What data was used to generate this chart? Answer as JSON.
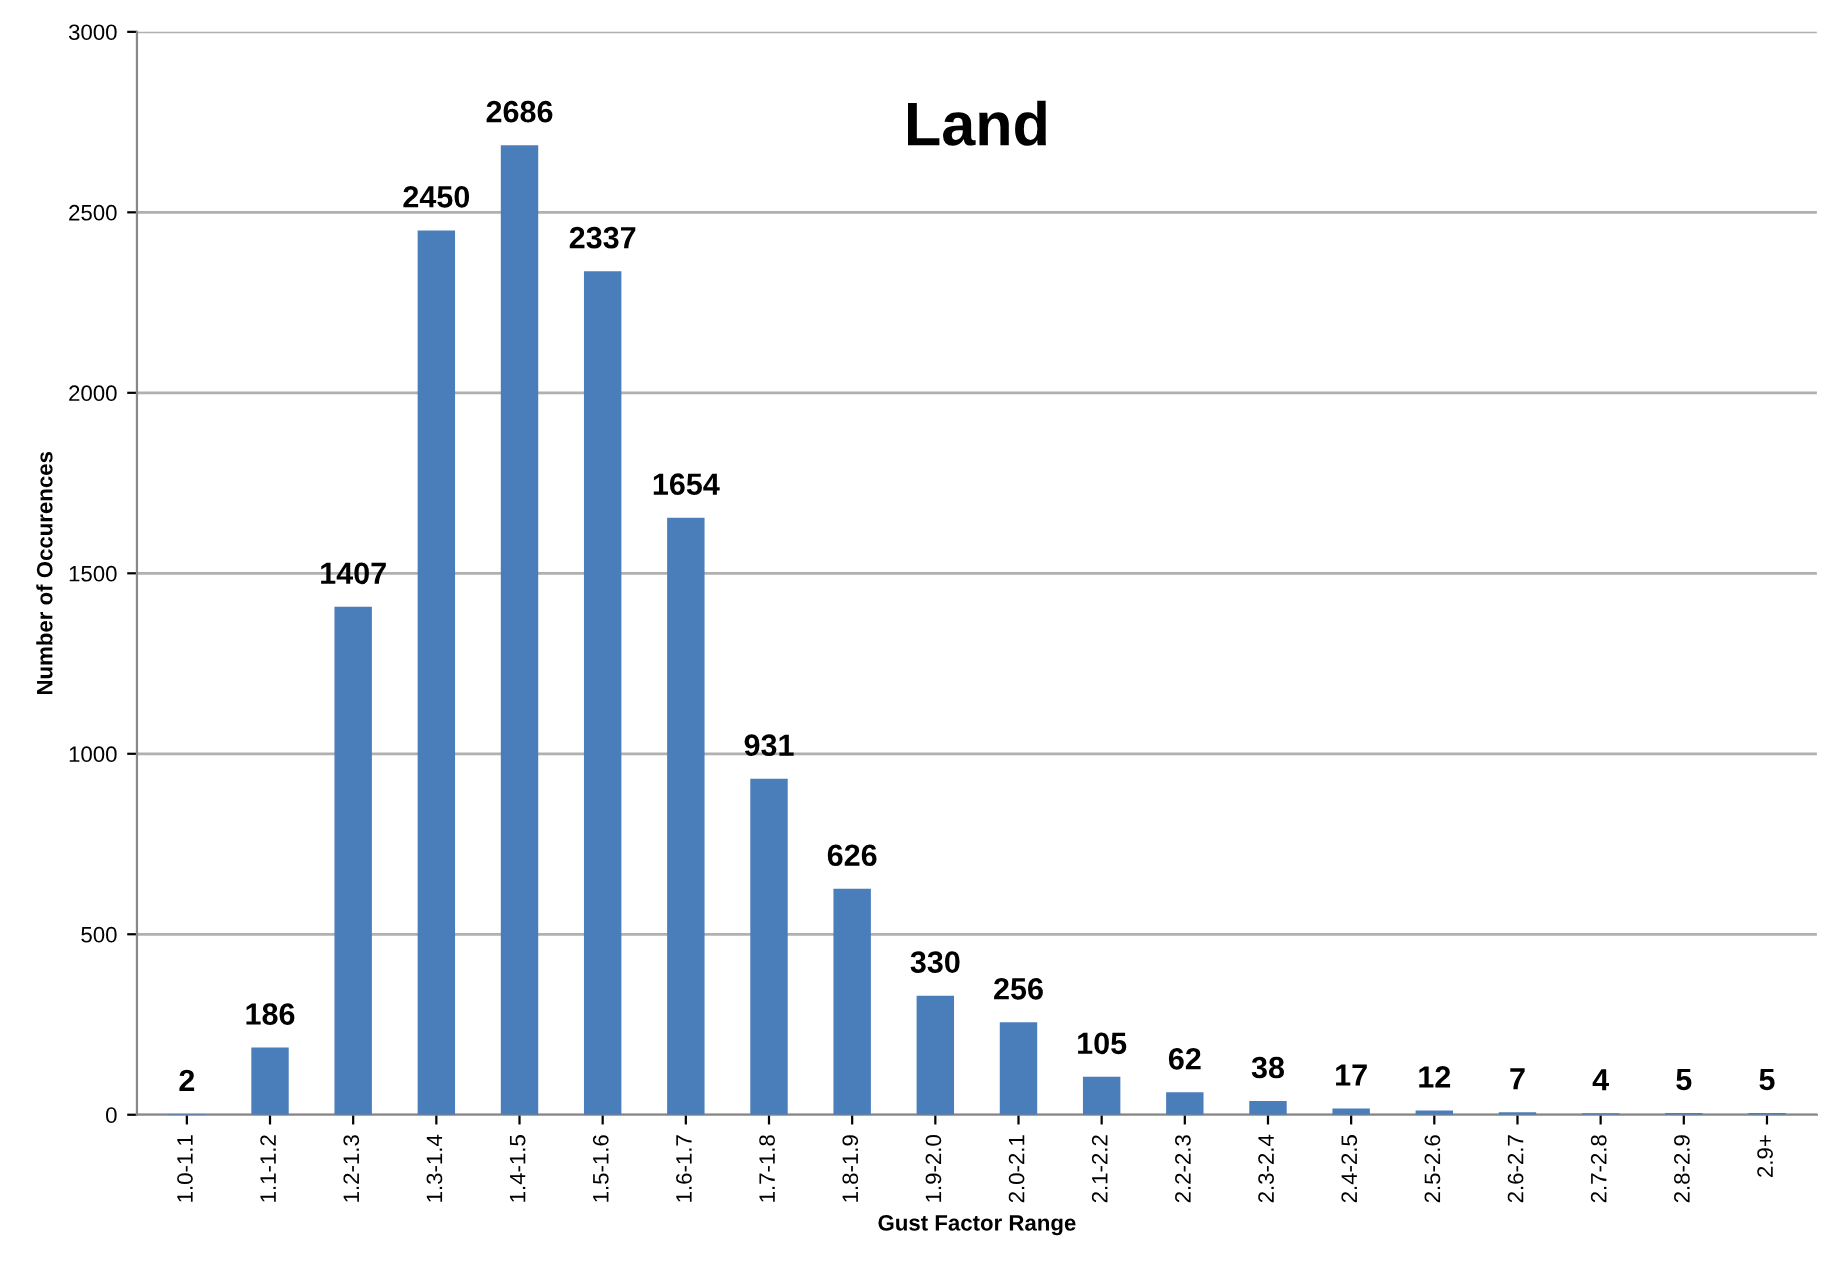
{
  "chart_data": {
    "type": "bar",
    "title": "Land",
    "xlabel": "Gust Factor Range",
    "ylabel": "Number of Occurences",
    "categories": [
      "1.0-1.1",
      "1.1-1.2",
      "1.2-1.3",
      "1.3-1.4",
      "1.4-1.5",
      "1.5-1.6",
      "1.6-1.7",
      "1.7-1.8",
      "1.8-1.9",
      "1.9-2.0",
      "2.0-2.1",
      "2.1-2.2",
      "2.2-2.3",
      "2.3-2.4",
      "2.4-2.5",
      "2.5-2.6",
      "2.6-2.7",
      "2.7-2.8",
      "2.8-2.9",
      "2.9+"
    ],
    "values": [
      2,
      186,
      1407,
      2450,
      2686,
      2337,
      1654,
      931,
      626,
      330,
      256,
      105,
      62,
      38,
      17,
      12,
      7,
      4,
      5,
      5
    ],
    "color": "#4a7ebb",
    "ylim": [
      0,
      3000
    ],
    "yticks": [
      0,
      500,
      1000,
      1500,
      2000,
      2500,
      3000
    ],
    "grid": "y",
    "data_labels": true,
    "legend": false
  }
}
